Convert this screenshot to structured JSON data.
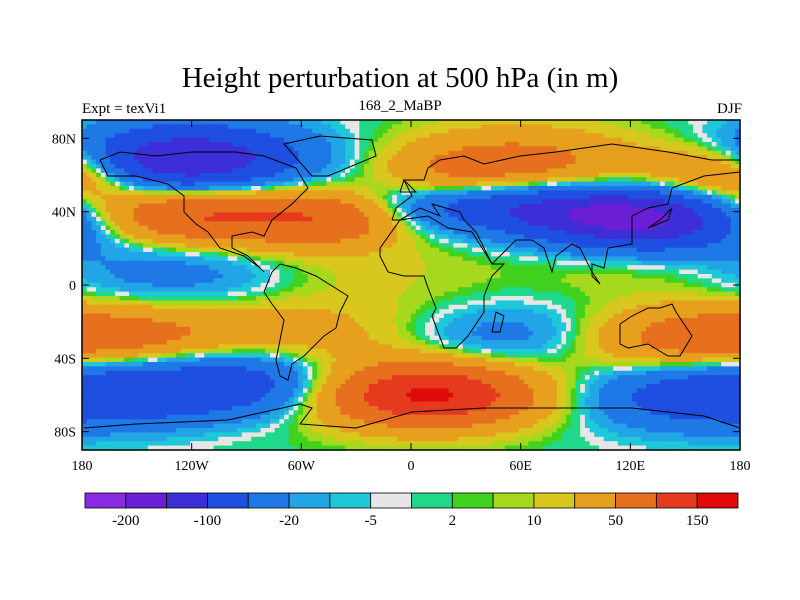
{
  "chart_data": {
    "type": "heatmap",
    "title": "Height perturbation at 500 hPa (in m)",
    "left_label": "Expt = texVi1",
    "center_label": "168_2_MaBP",
    "right_label": "DJF",
    "xlim": [
      -180,
      180
    ],
    "ylim": [
      -90,
      90
    ],
    "x_ticks": [
      {
        "value": -180,
        "label": "180"
      },
      {
        "value": -120,
        "label": "120W"
      },
      {
        "value": -60,
        "label": "60W"
      },
      {
        "value": 0,
        "label": "0"
      },
      {
        "value": 60,
        "label": "60E"
      },
      {
        "value": 120,
        "label": "120E"
      },
      {
        "value": 180,
        "label": "180"
      }
    ],
    "y_ticks": [
      {
        "value": 80,
        "label": "80N"
      },
      {
        "value": 40,
        "label": "40N"
      },
      {
        "value": 0,
        "label": "0"
      },
      {
        "value": -40,
        "label": "40S"
      },
      {
        "value": -80,
        "label": "80S"
      }
    ],
    "colorbar": {
      "colors": [
        "#8a2be2",
        "#6a1fd6",
        "#3c2fd8",
        "#1f4fe0",
        "#1e78e6",
        "#21a5e6",
        "#1fc8d8",
        "#e6e6e6",
        "#20d88a",
        "#40d21e",
        "#a6d81e",
        "#d8c81e",
        "#e6a01e",
        "#e6701e",
        "#e63a1e",
        "#e00a0a"
      ],
      "levels": [
        -200,
        -150,
        -100,
        -50,
        -20,
        -10,
        -5,
        -2,
        2,
        5,
        10,
        20,
        50,
        100,
        150
      ],
      "tick_labels": [
        {
          "level_index": 0,
          "label": "-200"
        },
        {
          "level_index": 2,
          "label": "-100"
        },
        {
          "level_index": 4,
          "label": "-20"
        },
        {
          "level_index": 6,
          "label": "-5"
        },
        {
          "level_index": 8,
          "label": "2"
        },
        {
          "level_index": 10,
          "label": "10"
        },
        {
          "level_index": 12,
          "label": "50"
        },
        {
          "level_index": 14,
          "label": "150"
        }
      ]
    },
    "anomaly_centers": [
      {
        "lon": -150,
        "lat": 68,
        "value": -80,
        "dlon": 45,
        "dlat": 12
      },
      {
        "lon": -110,
        "lat": 68,
        "value": -90,
        "dlon": 40,
        "dlat": 14
      },
      {
        "lon": -150,
        "lat": 38,
        "value": 70,
        "dlon": 45,
        "dlat": 12
      },
      {
        "lon": -90,
        "lat": 38,
        "value": 80,
        "dlon": 45,
        "dlat": 12
      },
      {
        "lon": -40,
        "lat": 36,
        "value": 50,
        "dlon": 25,
        "dlat": 10
      },
      {
        "lon": 60,
        "lat": 65,
        "value": 70,
        "dlon": 45,
        "dlat": 14
      },
      {
        "lon": 20,
        "lat": 58,
        "value": 30,
        "dlon": 25,
        "dlat": 10
      },
      {
        "lon": 30,
        "lat": 45,
        "value": -70,
        "dlon": 40,
        "dlat": 10
      },
      {
        "lon": 140,
        "lat": 35,
        "value": -130,
        "dlon": 45,
        "dlat": 12
      },
      {
        "lon": 100,
        "lat": 40,
        "value": -90,
        "dlon": 40,
        "dlat": 10
      },
      {
        "lon": 165,
        "lat": 62,
        "value": 70,
        "dlon": 30,
        "dlat": 12
      },
      {
        "lon": -175,
        "lat": 62,
        "value": 30,
        "dlon": 20,
        "dlat": 10
      },
      {
        "lon": -130,
        "lat": 8,
        "value": -35,
        "dlon": 45,
        "dlat": 14
      },
      {
        "lon": -30,
        "lat": 8,
        "value": 12,
        "dlon": 50,
        "dlat": 16
      },
      {
        "lon": 130,
        "lat": 10,
        "value": 12,
        "dlon": 50,
        "dlat": 10
      },
      {
        "lon": -160,
        "lat": -28,
        "value": 50,
        "dlon": 45,
        "dlat": 12
      },
      {
        "lon": -60,
        "lat": -28,
        "value": 30,
        "dlon": 60,
        "dlat": 14
      },
      {
        "lon": 140,
        "lat": -30,
        "value": 60,
        "dlon": 50,
        "dlat": 13
      },
      {
        "lon": 60,
        "lat": -28,
        "value": -45,
        "dlon": 45,
        "dlat": 12
      },
      {
        "lon": -150,
        "lat": -58,
        "value": -70,
        "dlon": 45,
        "dlat": 14
      },
      {
        "lon": -90,
        "lat": -52,
        "value": -60,
        "dlon": 35,
        "dlat": 12
      },
      {
        "lon": 10,
        "lat": -60,
        "value": 160,
        "dlon": 40,
        "dlat": 12
      },
      {
        "lon": 150,
        "lat": -60,
        "value": -60,
        "dlon": 40,
        "dlat": 13
      },
      {
        "lon": -130,
        "lat": -80,
        "value": 5,
        "dlon": 60,
        "dlat": 8
      }
    ]
  }
}
